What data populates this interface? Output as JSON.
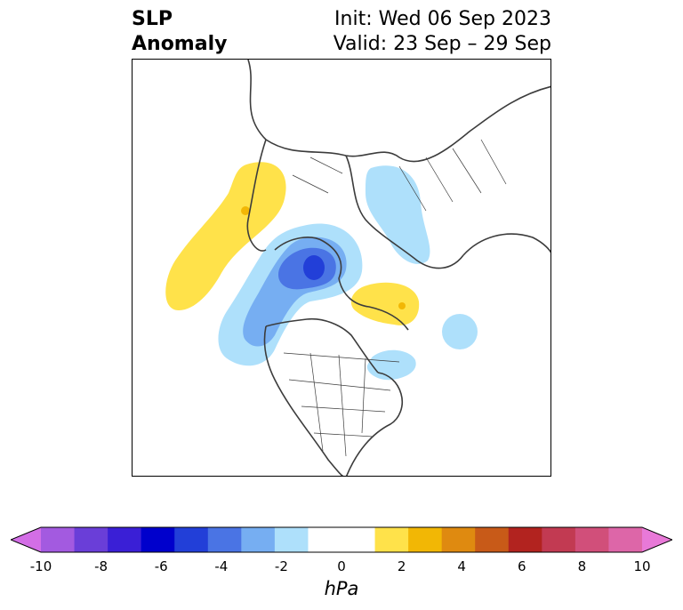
{
  "title": {
    "left_line1": "SLP",
    "left_line2": "Anomaly",
    "right_line1": "Init: Wed 06 Sep 2023",
    "right_line2": "Valid: 23 Sep – 29 Sep"
  },
  "colorbar": {
    "label": "hPa",
    "min": -10,
    "max": 10,
    "ticks": [
      "-10",
      "-8",
      "-6",
      "-4",
      "-2",
      "0",
      "2",
      "4",
      "6",
      "8",
      "10"
    ],
    "colors": [
      "#d36ee6",
      "#a35ae0",
      "#6a3ed8",
      "#3a1fd6",
      "#0000cc",
      "#223fd8",
      "#4a74e4",
      "#76aef2",
      "#aee0fb",
      "#ffffff",
      "#ffffff",
      "#ffe24a",
      "#f2b705",
      "#df8a10",
      "#c85a18",
      "#b2231f",
      "#c23a52",
      "#d14f7a",
      "#dd66a8",
      "#e879d8"
    ]
  },
  "map": {
    "anomaly_colors": {
      "strong_negative": "#223fd8",
      "negative_mid": "#4a74e4",
      "negative_light": "#76aef2",
      "negative_faint": "#aee0fb",
      "positive_light": "#ffe24a",
      "positive_mid": "#f2b705",
      "coastline": "#3c3c3c"
    }
  }
}
